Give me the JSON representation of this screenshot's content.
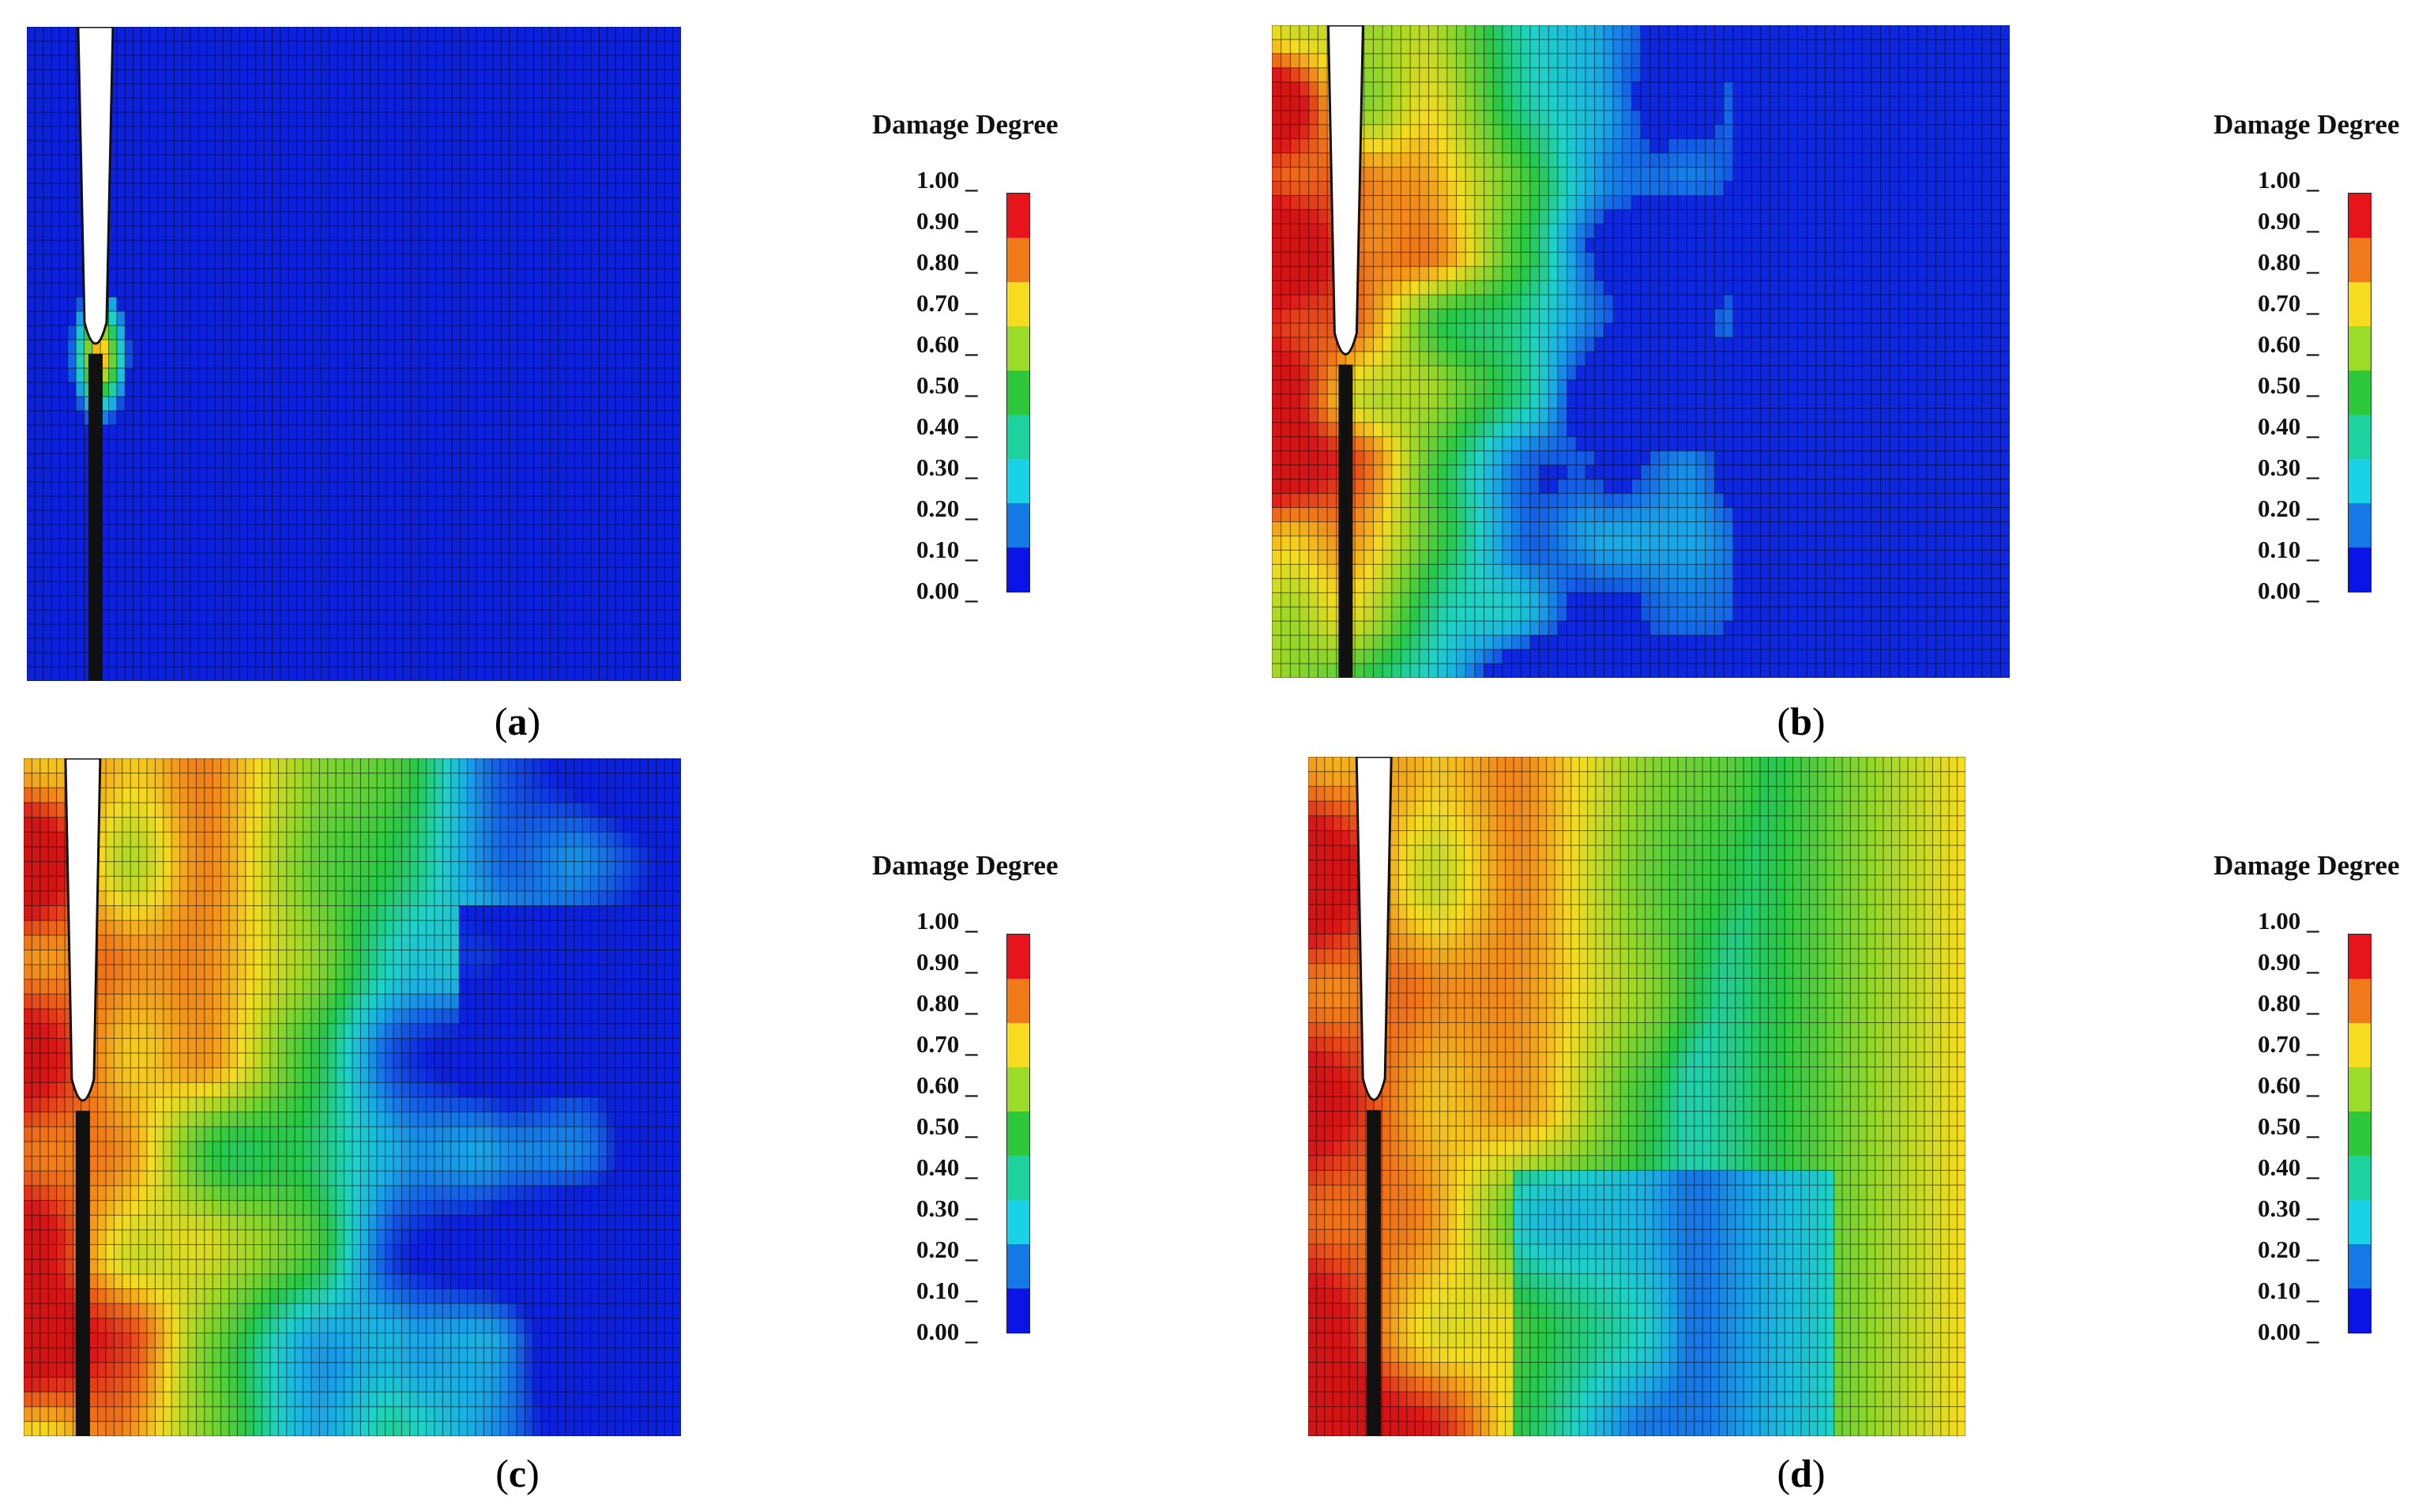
{
  "figure": {
    "colorbar": {
      "title": "Damage Degree",
      "ticks": [
        "1.00",
        "0.90",
        "0.80",
        "0.70",
        "0.60",
        "0.50",
        "0.40",
        "0.30",
        "0.20",
        "0.10",
        "0.00"
      ],
      "colors": [
        "#e8141c",
        "#f07a1a",
        "#f5dc1e",
        "#9bdc2a",
        "#2ec83c",
        "#1ed2a0",
        "#19d2e6",
        "#1478e6",
        "#0a14e6"
      ]
    },
    "panels": [
      {
        "id": "a",
        "caption_open": "(",
        "caption_letter": "a",
        "caption_close": ")",
        "damage": "low"
      },
      {
        "id": "b",
        "caption_open": "(",
        "caption_letter": "b",
        "caption_close": ")",
        "damage": "moderate"
      },
      {
        "id": "c",
        "caption_open": "(",
        "caption_letter": "c",
        "caption_close": ")",
        "damage": "high"
      },
      {
        "id": "d",
        "caption_open": "(",
        "caption_letter": "d",
        "caption_close": ")",
        "damage": "very-high"
      }
    ]
  }
}
